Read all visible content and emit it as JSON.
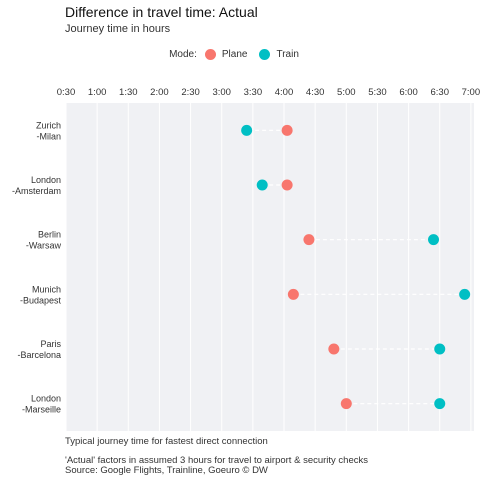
{
  "title": "Difference in travel time: Actual",
  "subtitle": "Journey time in hours",
  "legend": {
    "title": "Mode:",
    "items": [
      {
        "label": "Plane",
        "color": "#F8766D"
      },
      {
        "label": "Train",
        "color": "#00BFC4"
      }
    ]
  },
  "chart_data": {
    "type": "scatter",
    "x_ticks": [
      "0:30",
      "1:00",
      "1:30",
      "2:00",
      "2:30",
      "3:00",
      "3:30",
      "4:00",
      "4:30",
      "5:00",
      "5:30",
      "6:00",
      "6:30",
      "7:00"
    ],
    "x_tick_hours": [
      0.5,
      1,
      1.5,
      2,
      2.5,
      3,
      3.5,
      4,
      4.5,
      5,
      5.5,
      6,
      6.5,
      7
    ],
    "xlim": [
      0.5,
      7.05
    ],
    "x_axis_position": "top",
    "grid": true,
    "legend_position": "top",
    "routes": [
      {
        "label_line1": "Zurich",
        "label_line2": "-Milan",
        "plane": 4.05,
        "train": 3.4
      },
      {
        "label_line1": "London",
        "label_line2": "-Amsterdam",
        "plane": 4.05,
        "train": 3.65
      },
      {
        "label_line1": "Berlin",
        "label_line2": "-Warsaw",
        "plane": 4.4,
        "train": 6.4
      },
      {
        "label_line1": "Munich",
        "label_line2": "-Budapest",
        "plane": 4.15,
        "train": 6.9
      },
      {
        "label_line1": "Paris",
        "label_line2": "-Barcelona",
        "plane": 4.8,
        "train": 6.5
      },
      {
        "label_line1": "London",
        "label_line2": "-Marseille",
        "plane": 5.0,
        "train": 6.5
      }
    ],
    "series": [
      {
        "name": "Plane",
        "color": "#F8766D"
      },
      {
        "name": "Train",
        "color": "#00BFC4"
      }
    ]
  },
  "caption": {
    "line1": "Typical journey time for fastest direct connection",
    "line2": "'Actual' factors in assumed 3 hours for travel to airport & security checks",
    "line3": "Source: Google Flights, Trainline, Goeuro © DW"
  }
}
